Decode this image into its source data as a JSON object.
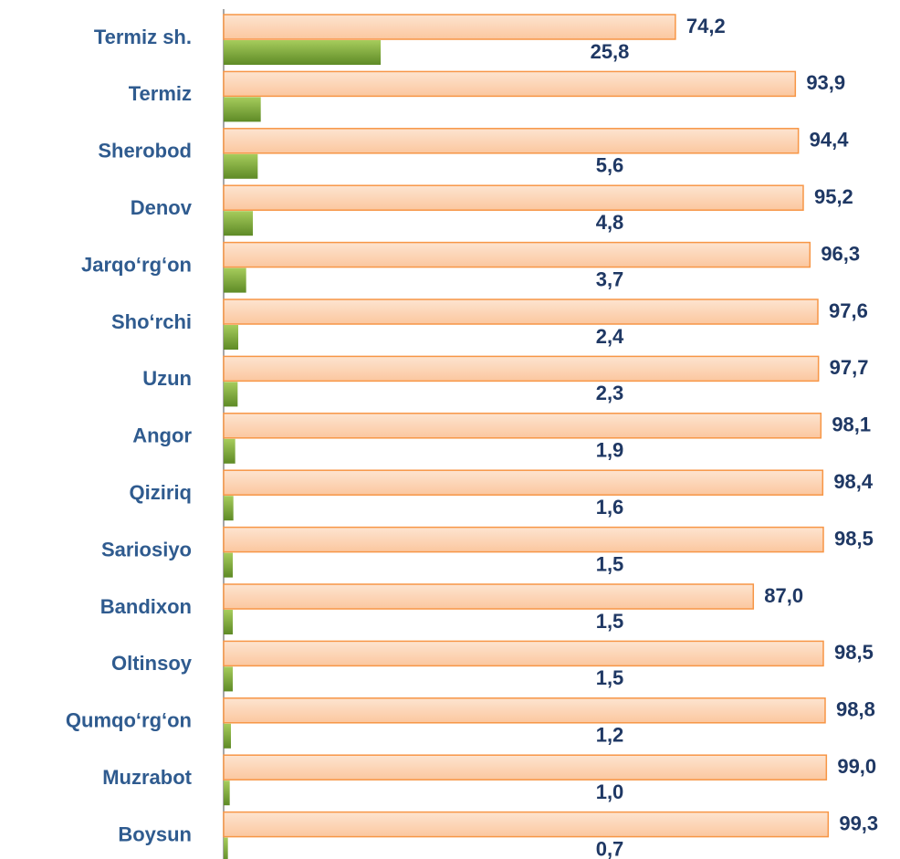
{
  "chart_data": {
    "type": "bar",
    "orientation": "horizontal",
    "categories": [
      "Termiz sh.",
      "Termiz",
      "Sherobod",
      "Denov",
      "Jarqo‘rg‘on",
      "Sho‘rchi",
      "Uzun",
      "Angor",
      "Qiziriq",
      "Sariosiyo",
      "Bandixon",
      "Oltinsoy",
      "Qumqo‘rg‘on",
      "Muzrabot",
      "Boysun"
    ],
    "series": [
      {
        "color": "#f79646",
        "values": [
          74.2,
          93.9,
          94.4,
          95.2,
          96.3,
          97.6,
          97.7,
          98.1,
          98.4,
          98.5,
          87.0,
          98.5,
          98.8,
          99.0,
          99.3
        ],
        "value_labels": [
          "74,2",
          "93,9",
          "94,4",
          "95,2",
          "96,3",
          "97,6",
          "97,7",
          "98,1",
          "98,4",
          "98,5",
          "87,0",
          "98,5",
          "98,8",
          "99,0",
          "99,3"
        ]
      },
      {
        "color": "#77a03a",
        "values": [
          25.8,
          6.1,
          5.6,
          4.8,
          3.7,
          2.4,
          2.3,
          1.9,
          1.6,
          1.5,
          1.5,
          1.5,
          1.2,
          1.0,
          0.7
        ],
        "value_labels": [
          "25,8",
          null,
          "5,6",
          "4,8",
          "3,7",
          "2,4",
          "2,3",
          "1,9",
          "1,6",
          "1,5",
          "1,5",
          "1,5",
          "1,2",
          "1,0",
          "0,7"
        ]
      }
    ]
  }
}
